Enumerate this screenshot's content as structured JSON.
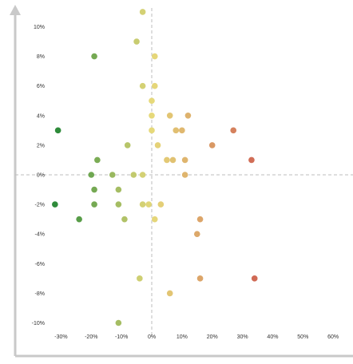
{
  "chart_data": {
    "type": "scatter",
    "title": "",
    "xlabel": "",
    "ylabel": "",
    "xlim": [
      -34,
      60
    ],
    "ylim": [
      -10.5,
      11
    ],
    "x_ticks": [
      {
        "value": -30,
        "label": "-30%"
      },
      {
        "value": -20,
        "label": "-20%"
      },
      {
        "value": -10,
        "label": "-10%"
      },
      {
        "value": 0,
        "label": "0%"
      },
      {
        "value": 10,
        "label": "10%"
      },
      {
        "value": 20,
        "label": "20%"
      },
      {
        "value": 30,
        "label": "30%"
      },
      {
        "value": 40,
        "label": "40%"
      },
      {
        "value": 50,
        "label": "50%"
      },
      {
        "value": 60,
        "label": "60%"
      }
    ],
    "y_ticks": [
      {
        "value": 10,
        "label": "10%"
      },
      {
        "value": 8,
        "label": "8%"
      },
      {
        "value": 6,
        "label": "6%"
      },
      {
        "value": 4,
        "label": "4%"
      },
      {
        "value": 2,
        "label": "2%"
      },
      {
        "value": 0,
        "label": "0%"
      },
      {
        "value": -2,
        "label": "-2%"
      },
      {
        "value": -4,
        "label": "-4%"
      },
      {
        "value": -6,
        "label": "-6%"
      },
      {
        "value": -8,
        "label": "-8%"
      },
      {
        "value": -10,
        "label": "-10%"
      }
    ],
    "grid": false,
    "reference_lines": {
      "x": 0,
      "y": 0
    },
    "color_scale": {
      "low": "#2e8b3a",
      "mid": "#e6d97a",
      "high": "#d06a55",
      "min_x": -31,
      "max_x": 34
    },
    "points": [
      {
        "x": -3,
        "y": 11
      },
      {
        "x": -5,
        "y": 9
      },
      {
        "x": -19,
        "y": 8
      },
      {
        "x": 1,
        "y": 8
      },
      {
        "x": -3,
        "y": 6
      },
      {
        "x": 1,
        "y": 6
      },
      {
        "x": 0,
        "y": 5
      },
      {
        "x": 0,
        "y": 4
      },
      {
        "x": 6,
        "y": 4
      },
      {
        "x": 12,
        "y": 4
      },
      {
        "x": -31,
        "y": 3
      },
      {
        "x": 0,
        "y": 3
      },
      {
        "x": 8,
        "y": 3
      },
      {
        "x": 10,
        "y": 3
      },
      {
        "x": 27,
        "y": 3
      },
      {
        "x": -8,
        "y": 2
      },
      {
        "x": 2,
        "y": 2
      },
      {
        "x": 20,
        "y": 2
      },
      {
        "x": -18,
        "y": 1
      },
      {
        "x": 5,
        "y": 1
      },
      {
        "x": 7,
        "y": 1
      },
      {
        "x": 11,
        "y": 1
      },
      {
        "x": 33,
        "y": 1
      },
      {
        "x": -20,
        "y": 0
      },
      {
        "x": -13,
        "y": 0
      },
      {
        "x": -6,
        "y": 0
      },
      {
        "x": -3,
        "y": 0
      },
      {
        "x": 11,
        "y": 0
      },
      {
        "x": -19,
        "y": -1
      },
      {
        "x": -11,
        "y": -1
      },
      {
        "x": -32,
        "y": -2
      },
      {
        "x": -19,
        "y": -2
      },
      {
        "x": -11,
        "y": -2
      },
      {
        "x": -3,
        "y": -2
      },
      {
        "x": -1,
        "y": -2
      },
      {
        "x": 3,
        "y": -2
      },
      {
        "x": -24,
        "y": -3
      },
      {
        "x": -9,
        "y": -3
      },
      {
        "x": 1,
        "y": -3
      },
      {
        "x": 16,
        "y": -3
      },
      {
        "x": 15,
        "y": -4
      },
      {
        "x": -4,
        "y": -7
      },
      {
        "x": 16,
        "y": -7
      },
      {
        "x": 34,
        "y": -7
      },
      {
        "x": 6,
        "y": -8
      },
      {
        "x": -11,
        "y": -10
      }
    ]
  }
}
